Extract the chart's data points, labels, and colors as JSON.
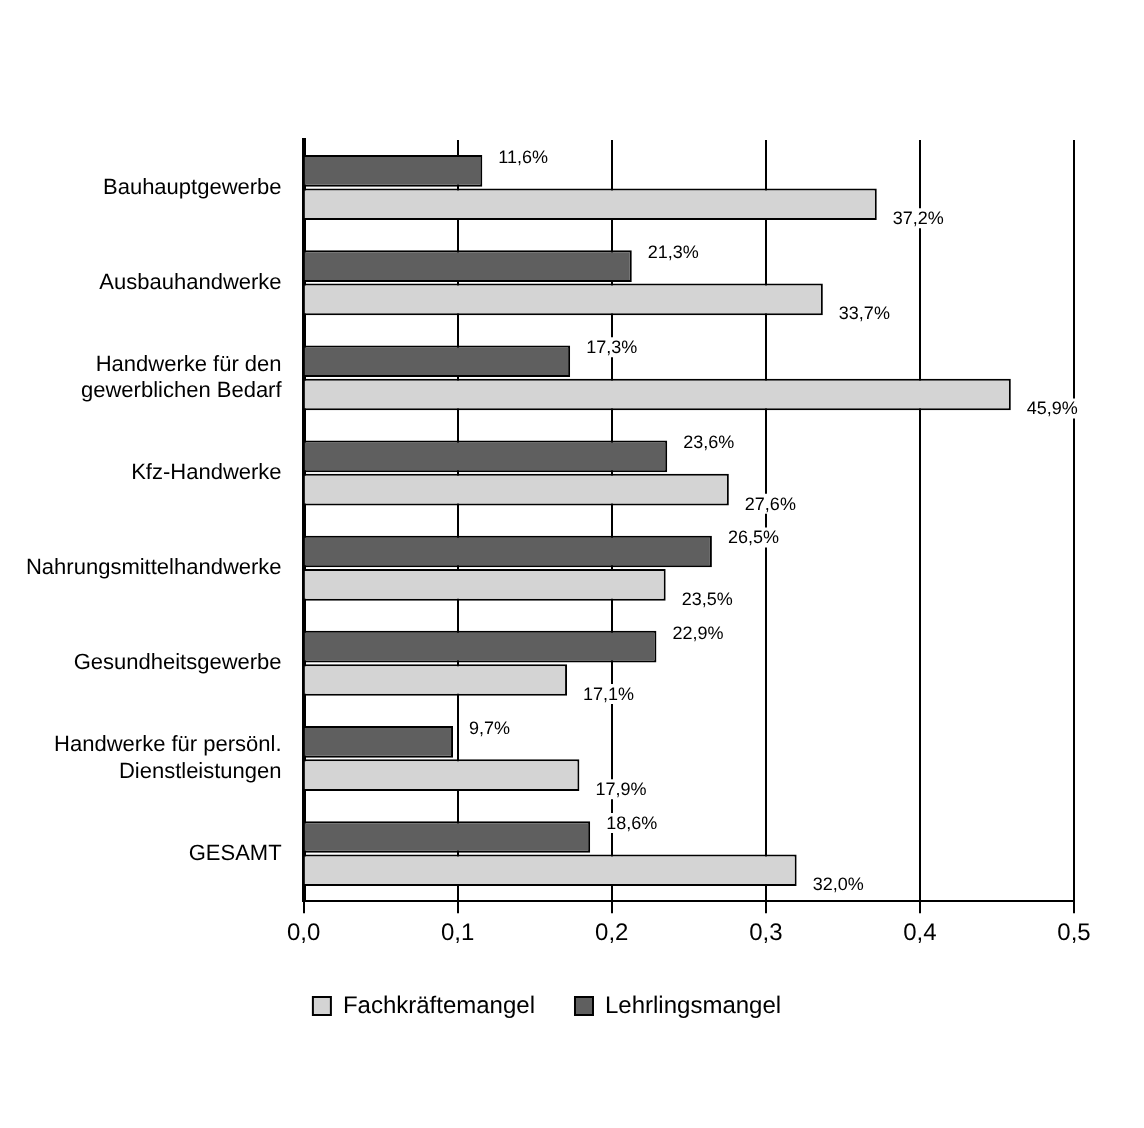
{
  "chart_data": {
    "type": "bar",
    "orientation": "horizontal",
    "categories": [
      "Bauhauptgewerbe",
      "Ausbauhandwerke",
      "Handwerke für den gewerblichen Bedarf",
      "Kfz-Handwerke",
      "Nahrungsmittelhandwerke",
      "Gesundheitsgewerbe",
      "Handwerke für persönl. Dienstleistungen",
      "GESAMT"
    ],
    "series": [
      {
        "name": "Lehrlingsmangel",
        "color": "#5f5f5f",
        "values": [
          0.116,
          0.213,
          0.173,
          0.236,
          0.265,
          0.229,
          0.097,
          0.186
        ],
        "value_labels": [
          "11,6%",
          "21,3%",
          "17,3%",
          "23,6%",
          "26,5%",
          "22,9%",
          "9,7%",
          "18,6%"
        ]
      },
      {
        "name": "Fachkräftemangel",
        "color": "#d4d4d4",
        "values": [
          0.372,
          0.337,
          0.459,
          0.276,
          0.235,
          0.171,
          0.179,
          0.32
        ],
        "value_labels": [
          "37,2%",
          "33,7%",
          "45,9%",
          "27,6%",
          "23,5%",
          "17,1%",
          "17,9%",
          "32,0%"
        ]
      }
    ],
    "xlim": [
      0,
      0.5
    ],
    "xticks": [
      {
        "value": 0,
        "label": "0,0"
      },
      {
        "value": 0.1,
        "label": "0,1"
      },
      {
        "value": 0.2,
        "label": "0,2"
      },
      {
        "value": 0.3,
        "label": "0,3"
      },
      {
        "value": 0.4,
        "label": "0,4"
      },
      {
        "value": 0.5,
        "label": "0,5"
      }
    ],
    "grid": "x",
    "legend": "bottom"
  }
}
